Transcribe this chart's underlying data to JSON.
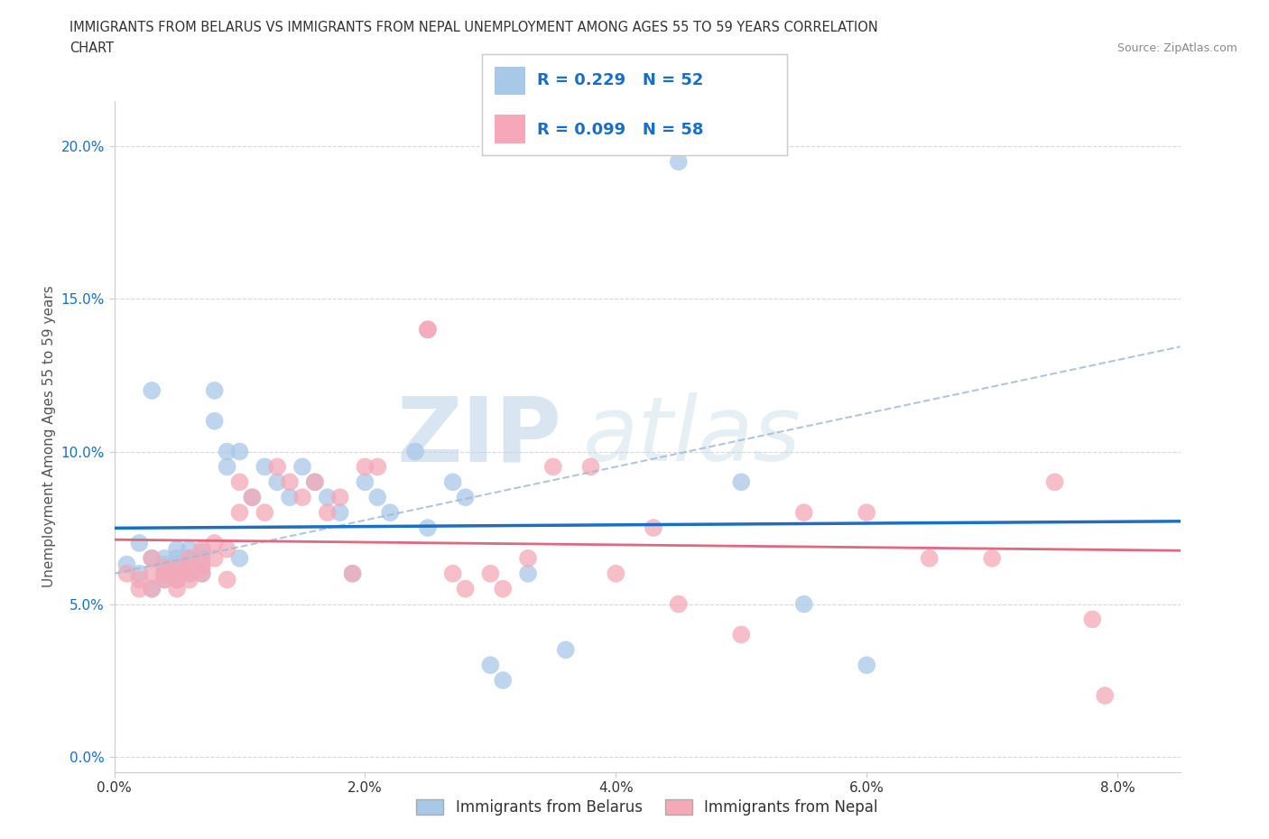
{
  "title_line1": "IMMIGRANTS FROM BELARUS VS IMMIGRANTS FROM NEPAL UNEMPLOYMENT AMONG AGES 55 TO 59 YEARS CORRELATION",
  "title_line2": "CHART",
  "source_text": "Source: ZipAtlas.com",
  "ylabel": "Unemployment Among Ages 55 to 59 years",
  "xlim": [
    0.0,
    0.085
  ],
  "ylim": [
    -0.005,
    0.215
  ],
  "xticks": [
    0.0,
    0.02,
    0.04,
    0.06,
    0.08
  ],
  "xticklabels": [
    "0.0%",
    "2.0%",
    "4.0%",
    "6.0%",
    "8.0%"
  ],
  "yticks": [
    0.0,
    0.05,
    0.1,
    0.15,
    0.2
  ],
  "yticklabels": [
    "0.0%",
    "5.0%",
    "10.0%",
    "15.0%",
    "20.0%"
  ],
  "belarus_color": "#a8c8e8",
  "nepal_color": "#f4a8b8",
  "belarus_line_color": "#1a6fc4",
  "nepal_line_color": "#e06880",
  "dashed_line_color": "#a0b8d0",
  "R_belarus": 0.229,
  "N_belarus": 52,
  "R_nepal": 0.099,
  "N_nepal": 58,
  "legend_label_belarus": "Immigrants from Belarus",
  "legend_label_nepal": "Immigrants from Nepal",
  "watermark_zip": "ZIP",
  "watermark_atlas": "atlas",
  "background_color": "#ffffff",
  "grid_color": "#d8d8d8",
  "title_color": "#333333",
  "axis_tick_color": "#1a6fc4",
  "ytick_color": "#1a6fc4",
  "xtick_color": "#333333",
  "belarus_x": [
    0.001,
    0.002,
    0.002,
    0.003,
    0.003,
    0.003,
    0.004,
    0.004,
    0.004,
    0.004,
    0.005,
    0.005,
    0.005,
    0.005,
    0.005,
    0.006,
    0.006,
    0.006,
    0.006,
    0.007,
    0.007,
    0.007,
    0.008,
    0.008,
    0.009,
    0.009,
    0.01,
    0.01,
    0.011,
    0.012,
    0.013,
    0.014,
    0.015,
    0.016,
    0.017,
    0.018,
    0.019,
    0.02,
    0.021,
    0.022,
    0.024,
    0.025,
    0.027,
    0.028,
    0.03,
    0.031,
    0.033,
    0.036,
    0.045,
    0.05,
    0.055,
    0.06
  ],
  "belarus_y": [
    0.063,
    0.06,
    0.07,
    0.055,
    0.065,
    0.12,
    0.06,
    0.065,
    0.063,
    0.058,
    0.065,
    0.063,
    0.06,
    0.068,
    0.058,
    0.065,
    0.063,
    0.06,
    0.068,
    0.065,
    0.06,
    0.067,
    0.12,
    0.11,
    0.1,
    0.095,
    0.065,
    0.1,
    0.085,
    0.095,
    0.09,
    0.085,
    0.095,
    0.09,
    0.085,
    0.08,
    0.06,
    0.09,
    0.085,
    0.08,
    0.1,
    0.075,
    0.09,
    0.085,
    0.03,
    0.025,
    0.06,
    0.035,
    0.195,
    0.09,
    0.05,
    0.03
  ],
  "nepal_x": [
    0.001,
    0.002,
    0.002,
    0.003,
    0.003,
    0.003,
    0.004,
    0.004,
    0.004,
    0.005,
    0.005,
    0.005,
    0.005,
    0.006,
    0.006,
    0.006,
    0.006,
    0.007,
    0.007,
    0.007,
    0.007,
    0.008,
    0.008,
    0.009,
    0.009,
    0.01,
    0.01,
    0.011,
    0.012,
    0.013,
    0.014,
    0.015,
    0.016,
    0.017,
    0.018,
    0.019,
    0.02,
    0.021,
    0.025,
    0.025,
    0.027,
    0.028,
    0.03,
    0.031,
    0.033,
    0.035,
    0.038,
    0.04,
    0.043,
    0.045,
    0.05,
    0.055,
    0.06,
    0.065,
    0.07,
    0.075,
    0.078,
    0.079
  ],
  "nepal_y": [
    0.06,
    0.058,
    0.055,
    0.06,
    0.065,
    0.055,
    0.062,
    0.058,
    0.06,
    0.062,
    0.058,
    0.055,
    0.06,
    0.062,
    0.065,
    0.058,
    0.06,
    0.063,
    0.06,
    0.068,
    0.062,
    0.07,
    0.065,
    0.058,
    0.068,
    0.08,
    0.09,
    0.085,
    0.08,
    0.095,
    0.09,
    0.085,
    0.09,
    0.08,
    0.085,
    0.06,
    0.095,
    0.095,
    0.14,
    0.14,
    0.06,
    0.055,
    0.06,
    0.055,
    0.065,
    0.095,
    0.095,
    0.06,
    0.075,
    0.05,
    0.04,
    0.08,
    0.08,
    0.065,
    0.065,
    0.09,
    0.045,
    0.02
  ]
}
